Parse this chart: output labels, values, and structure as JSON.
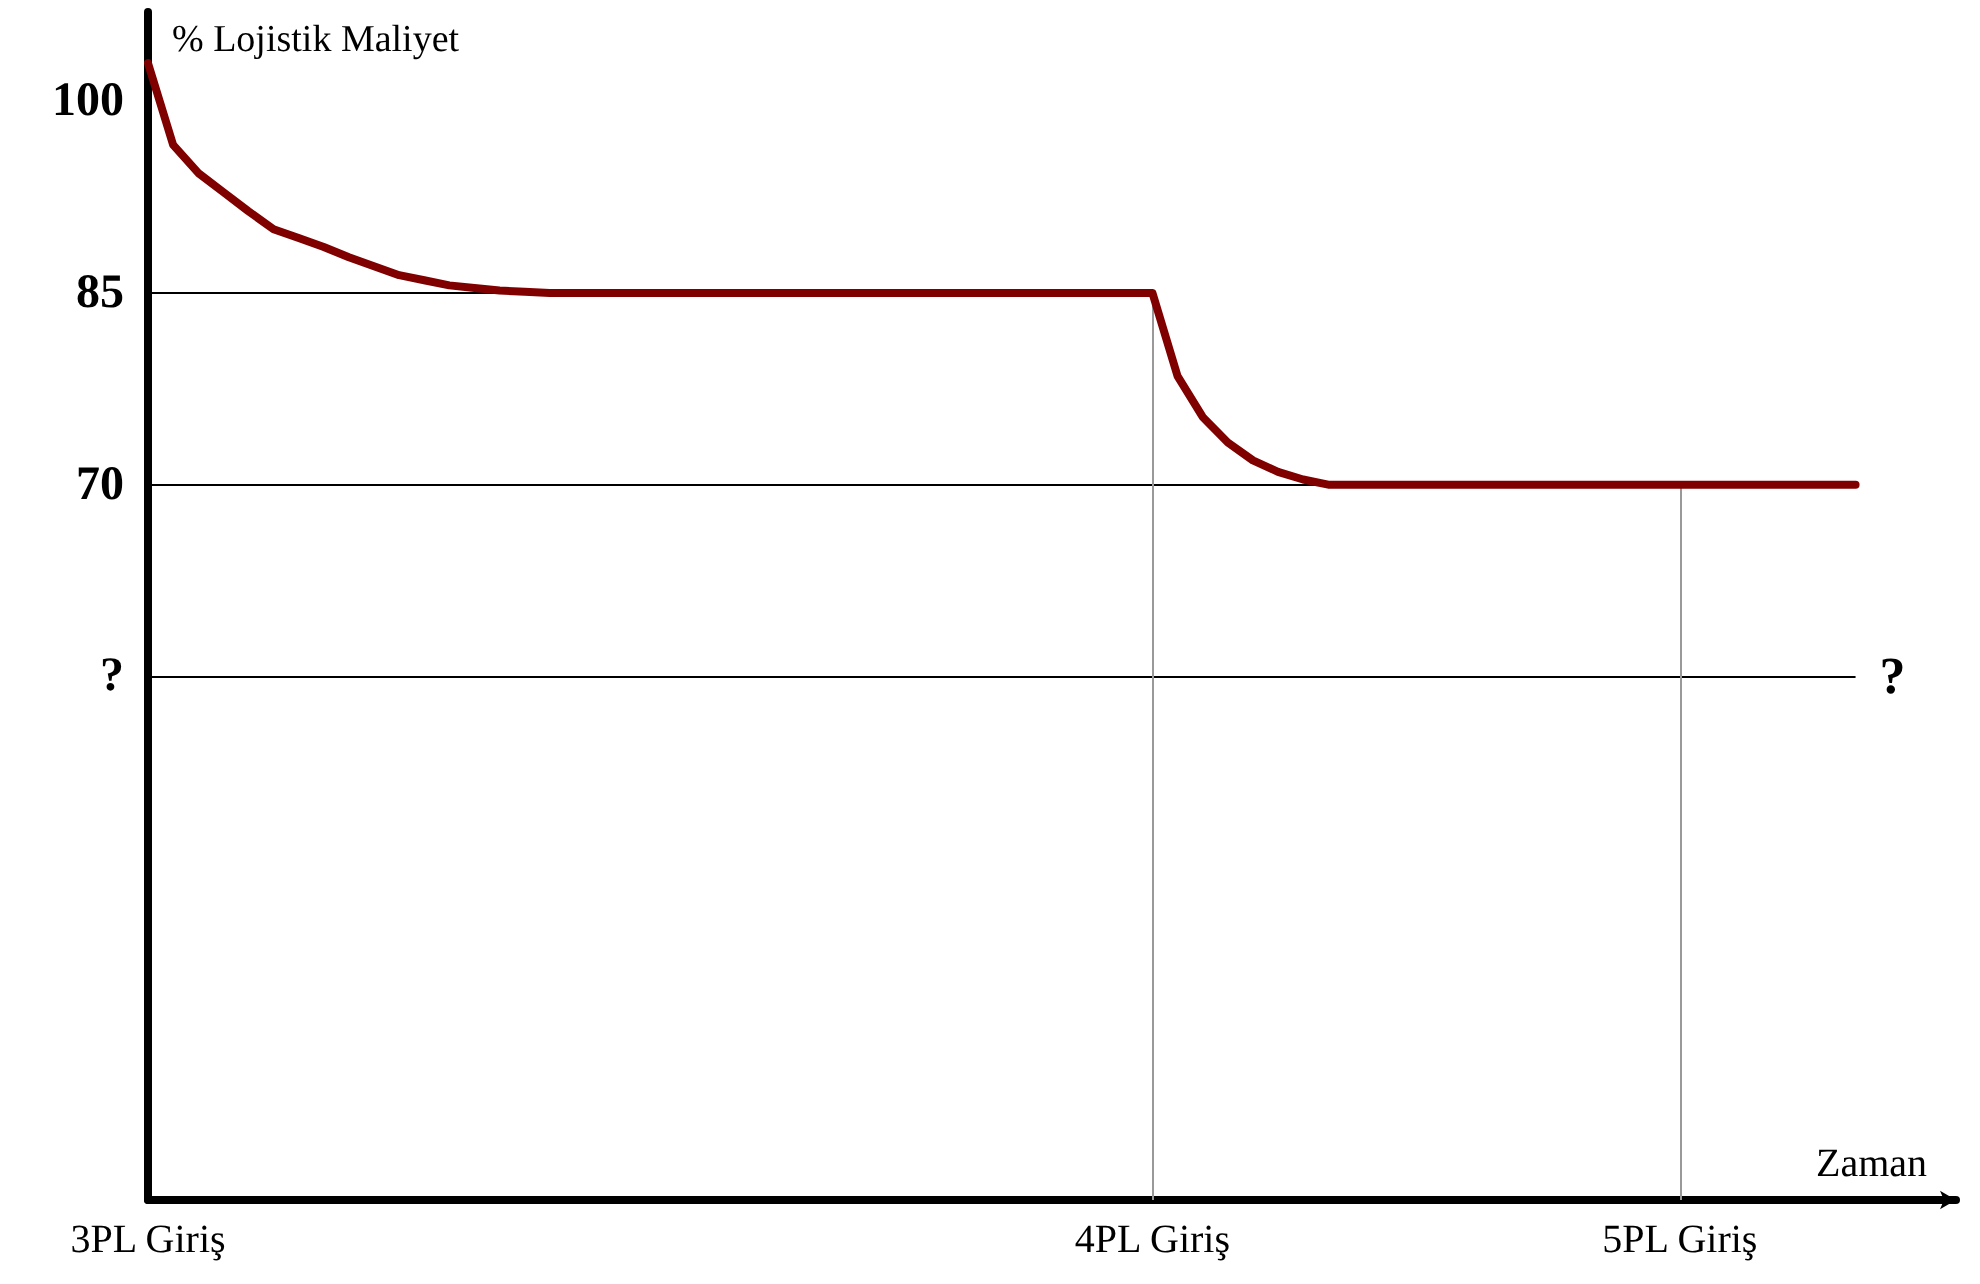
{
  "chart_data": {
    "type": "line",
    "ylabel": "% Lojistik Maliyet",
    "xlabel": "Zaman",
    "categories": [
      "3PL Giriş",
      null,
      null,
      null,
      null,
      null,
      null,
      null,
      null,
      null,
      null,
      null,
      null,
      null,
      null,
      null,
      null,
      null,
      null,
      null,
      null,
      null,
      null,
      null,
      null,
      null,
      null,
      null,
      null,
      null,
      null,
      null,
      null,
      null,
      null,
      null,
      null,
      null,
      null,
      null,
      "4PL Giriş",
      null,
      null,
      null,
      null,
      null,
      null,
      null,
      null,
      null,
      null,
      null,
      null,
      null,
      null,
      null,
      null,
      null,
      null,
      null,
      null,
      "5PL Giriş",
      null,
      null,
      null,
      null,
      null,
      null,
      null,
      null,
      null,
      null,
      null
    ],
    "series": [
      {
        "color": "#800000",
        "values": [
          103,
          96.6,
          94.4,
          92.9,
          91.4,
          90,
          89.3,
          88.6,
          87.8,
          87.1,
          86.4,
          86,
          85.6,
          85.4,
          85.2,
          85.1,
          85,
          85,
          85,
          85,
          85,
          85,
          85,
          85,
          85,
          85,
          85,
          85,
          85,
          85,
          85,
          85,
          85,
          85,
          85,
          85,
          85,
          85,
          85,
          85,
          85,
          78.5,
          75.3,
          73.3,
          71.9,
          71,
          70.4,
          70,
          70,
          70,
          70,
          70,
          70,
          70,
          70,
          70,
          70,
          70,
          70,
          70,
          70,
          70,
          70,
          70,
          70,
          70,
          70,
          70,
          70,
          null,
          null,
          null,
          null
        ]
      }
    ],
    "marker": "none",
    "line_style": "solid",
    "ylim": [
      14,
      107
    ],
    "yticks": [
      100,
      85,
      70,
      {
        "value": 55,
        "label": "?"
      }
    ],
    "ref_lines": [
      {
        "axis": "y",
        "value": 85,
        "color": "#000000"
      },
      {
        "axis": "y",
        "value": 70,
        "color": "#000000"
      },
      {
        "axis": "y",
        "value": 55,
        "label": "?",
        "color": "#000000"
      },
      {
        "axis": "x",
        "value": "4PL Giriş",
        "color": "#999999"
      },
      {
        "axis": "x",
        "value": "5PL Giriş",
        "color": "#999999"
      }
    ]
  }
}
